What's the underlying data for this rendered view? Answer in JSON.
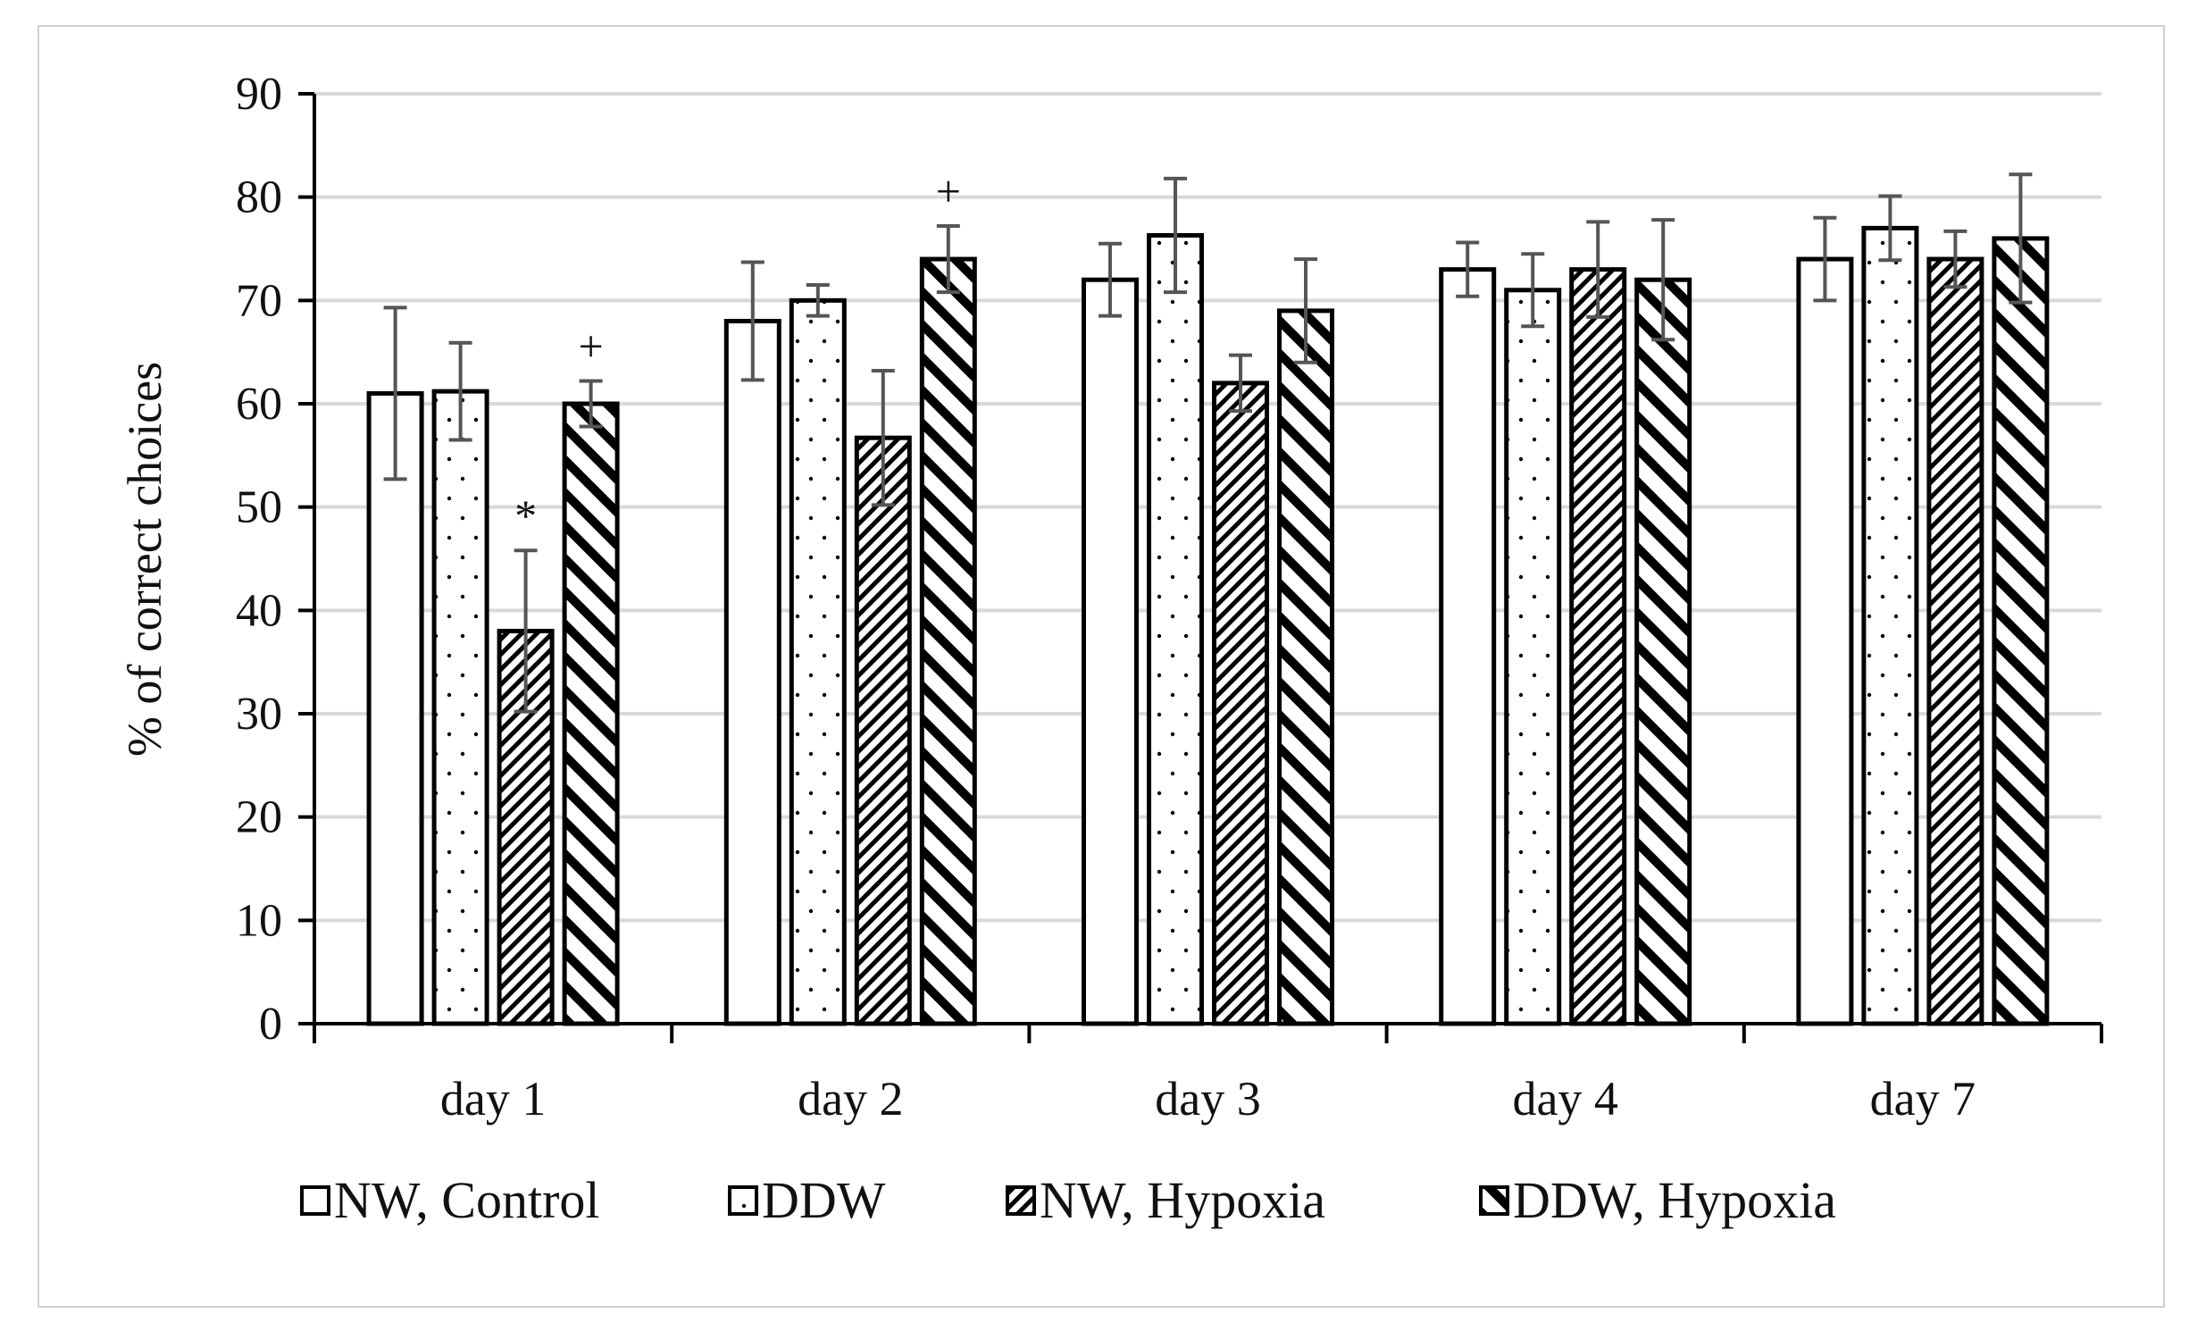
{
  "chart_data": {
    "type": "bar",
    "title": "",
    "xlabel": "",
    "ylabel": "% of correct choices",
    "ylim": [
      0,
      90
    ],
    "yticks": [
      0,
      10,
      20,
      30,
      40,
      50,
      60,
      70,
      80,
      90
    ],
    "grid": true,
    "legend_position": "bottom",
    "categories": [
      "day 1",
      "day 2",
      "day 3",
      "day 4",
      "day 7"
    ],
    "series": [
      {
        "name": "NW, Control",
        "pattern": "none",
        "values": [
          61,
          68,
          72,
          73,
          74
        ],
        "errors": [
          8.3,
          5.7,
          3.5,
          2.6,
          4
        ]
      },
      {
        "name": "DDW",
        "pattern": "dots",
        "values": [
          61.2,
          70,
          76.3,
          71,
          77
        ],
        "errors": [
          4.7,
          1.5,
          5.5,
          3.5,
          3.1
        ]
      },
      {
        "name": "NW, Hypoxia",
        "pattern": "narrow-diagonal",
        "values": [
          38,
          56.7,
          62,
          73,
          74
        ],
        "errors": [
          7.8,
          6.5,
          2.7,
          4.6,
          2.7
        ]
      },
      {
        "name": "DDW, Hypoxia",
        "pattern": "wide-diagonal",
        "values": [
          60,
          74,
          69,
          72,
          76
        ],
        "errors": [
          2.2,
          3.2,
          5,
          5.8,
          6.2
        ]
      }
    ],
    "annotations": [
      {
        "category": "day 1",
        "series": "NW, Hypoxia",
        "text": "*"
      },
      {
        "category": "day 1",
        "series": "DDW, Hypoxia",
        "text": "+"
      },
      {
        "category": "day 2",
        "series": "DDW, Hypoxia",
        "text": "+"
      }
    ],
    "colors": {
      "bar_edge": "#000000",
      "error_bar": "#555555",
      "grid": "#d9d9d9"
    }
  }
}
